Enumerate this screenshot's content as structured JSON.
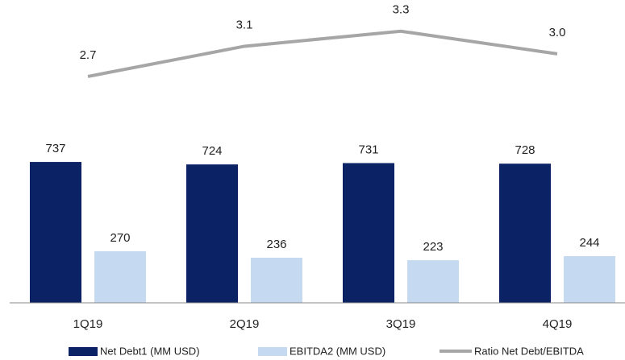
{
  "chart_data": {
    "type": "bar",
    "categories": [
      "1Q19",
      "2Q19",
      "3Q19",
      "4Q19"
    ],
    "series": [
      {
        "name": "Net Debt1 (MM USD)",
        "color": "#0b2265",
        "values": [
          737,
          724,
          731,
          728
        ]
      },
      {
        "name": "EBITDA2 (MM USD)",
        "color": "#c5d9f1",
        "values": [
          270,
          236,
          223,
          244
        ]
      },
      {
        "name": "Ratio Net Debt/EBITDA",
        "color": "#a6a6a6",
        "type": "line",
        "axis": "y2",
        "values": [
          2.7,
          3.1,
          3.3,
          3.0
        ],
        "value_labels": [
          "2.7",
          "3.1",
          "3.3",
          "3.0"
        ]
      }
    ],
    "ylim": [
      0,
      1500
    ],
    "y2lim": [
      -0.3,
      3.5
    ],
    "legend": "bottom"
  }
}
